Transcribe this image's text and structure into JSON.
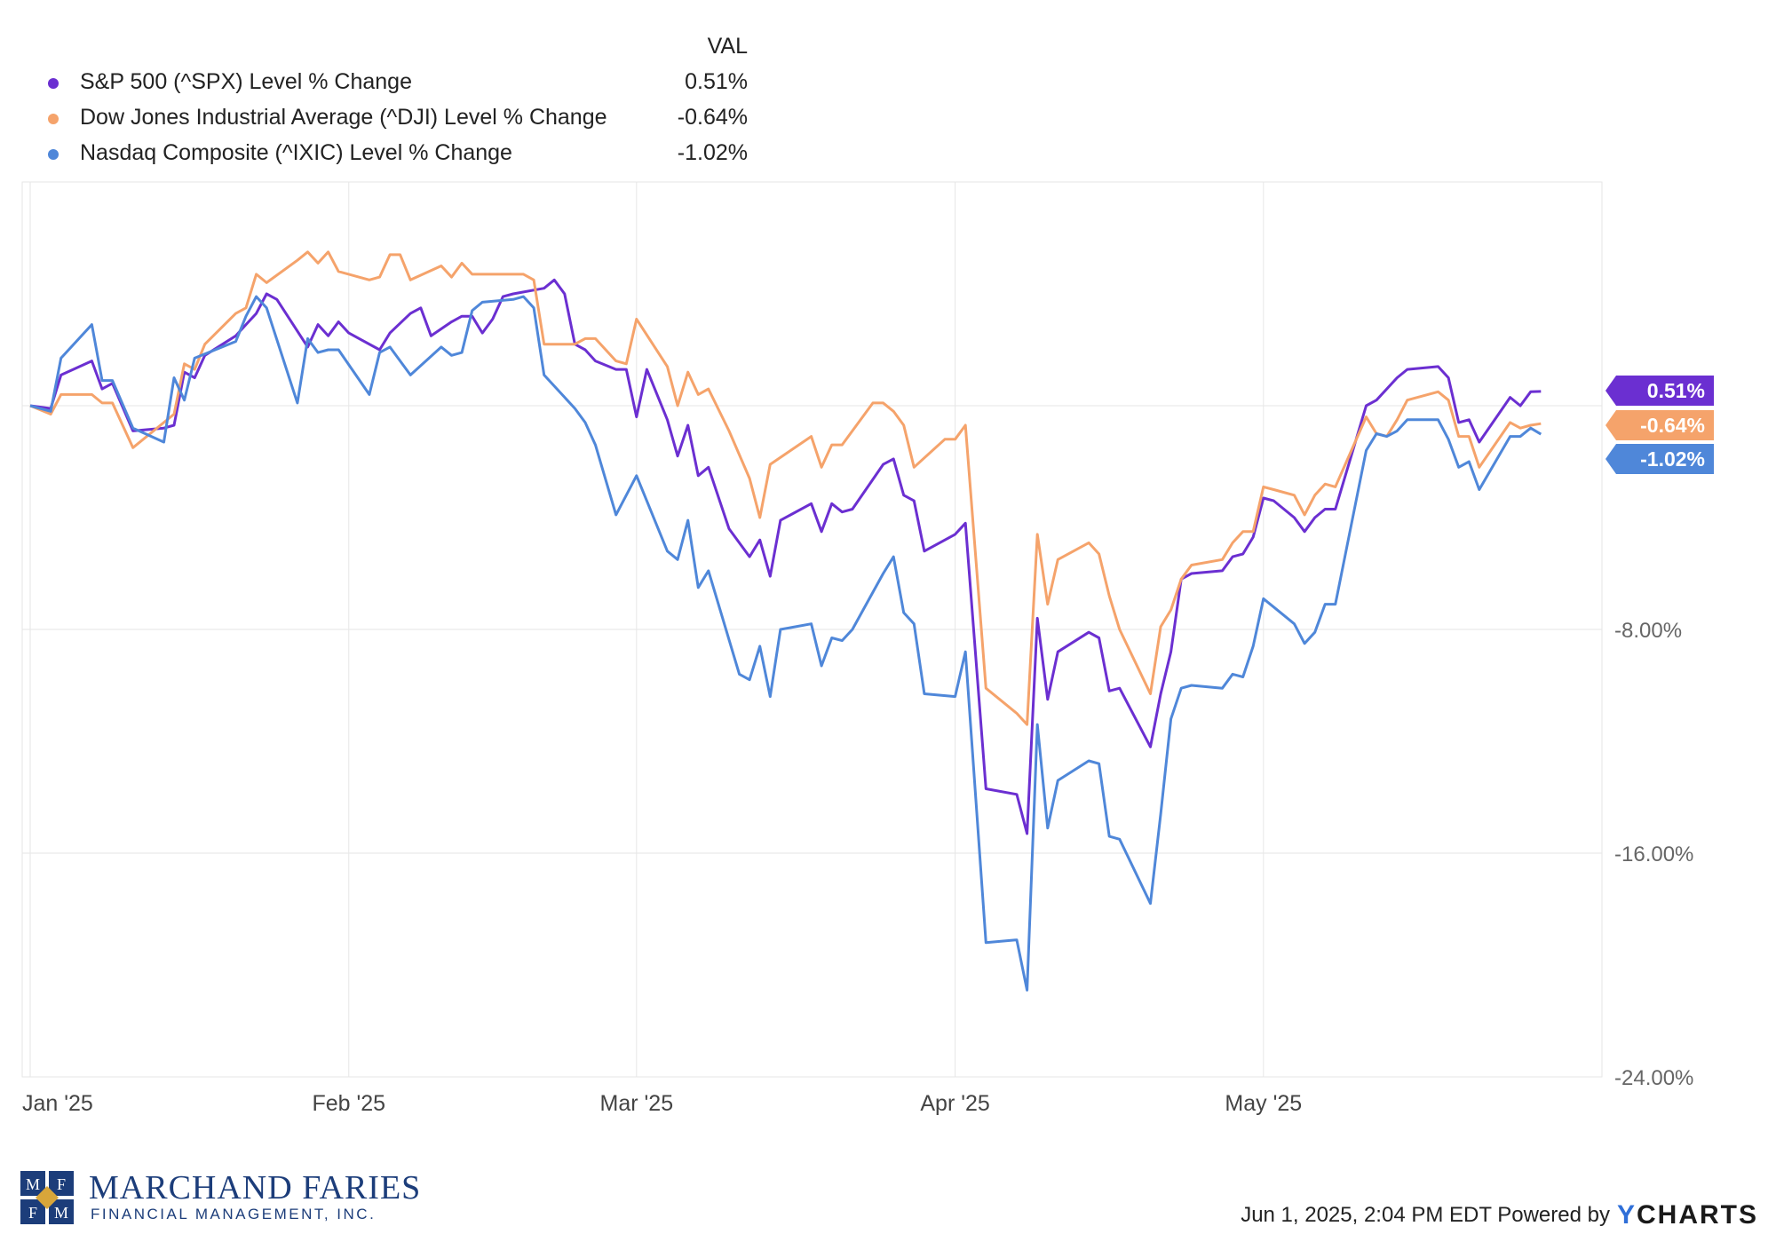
{
  "legend": {
    "header": "VAL",
    "items": [
      {
        "label": "S&P 500 (^SPX) Level % Change",
        "value": "0.51%",
        "color": "#6b2fd1"
      },
      {
        "label": "Dow Jones Industrial Average (^DJI) Level % Change",
        "value": "-0.64%",
        "color": "#f5a36b"
      },
      {
        "label": "Nasdaq Composite (^IXIC) Level % Change",
        "value": "-1.02%",
        "color": "#4f87d9"
      }
    ]
  },
  "chart_data": {
    "type": "line",
    "x_labels": [
      "Jan '25",
      "Feb '25",
      "Mar '25",
      "Apr '25",
      "May '25"
    ],
    "x_label_days": [
      0,
      31,
      59,
      90,
      120
    ],
    "y_ticks": [
      -8,
      -16,
      -24
    ],
    "y_tick_labels": [
      "-8.00%",
      "-16.00%",
      "-24.00%"
    ],
    "ylim": [
      -24,
      8
    ],
    "xlim_days": [
      0,
      150
    ],
    "grid": true,
    "end_labels": [
      "0.51%",
      "-0.64%",
      "-1.02%"
    ],
    "series": [
      {
        "name": "S&P 500 (^SPX) Level % Change",
        "color": "#6b2fd1",
        "points": [
          [
            0,
            0
          ],
          [
            2,
            -0.1
          ],
          [
            3,
            1.1
          ],
          [
            6,
            1.6
          ],
          [
            7,
            0.6
          ],
          [
            8,
            0.8
          ],
          [
            10,
            -0.9
          ],
          [
            13,
            -0.8
          ],
          [
            14,
            -0.7
          ],
          [
            15,
            1.2
          ],
          [
            16,
            1.0
          ],
          [
            17,
            1.8
          ],
          [
            20,
            2.5
          ],
          [
            21,
            2.9
          ],
          [
            22,
            3.3
          ],
          [
            23,
            4
          ],
          [
            24,
            3.8
          ],
          [
            27,
            2.1
          ],
          [
            28,
            2.9
          ],
          [
            29,
            2.5
          ],
          [
            30,
            3.0
          ],
          [
            31,
            2.6
          ],
          [
            34,
            2.0
          ],
          [
            35,
            2.6
          ],
          [
            37,
            3.3
          ],
          [
            38,
            3.5
          ],
          [
            39,
            2.5
          ],
          [
            41,
            3.0
          ],
          [
            42,
            3.2
          ],
          [
            43,
            3.2
          ],
          [
            44,
            2.6
          ],
          [
            45,
            3.1
          ],
          [
            46,
            3.9
          ],
          [
            47,
            4.0
          ],
          [
            50,
            4.2
          ],
          [
            51,
            4.5
          ],
          [
            52,
            4.0
          ],
          [
            53,
            2.2
          ],
          [
            54,
            2.0
          ],
          [
            55,
            1.6
          ],
          [
            57,
            1.3
          ],
          [
            58,
            1.3
          ],
          [
            59,
            -0.4
          ],
          [
            60,
            1.3
          ],
          [
            62,
            -0.5
          ],
          [
            63,
            -1.8
          ],
          [
            64,
            -0.7
          ],
          [
            65,
            -2.5
          ],
          [
            66,
            -2.2
          ],
          [
            68,
            -4.4
          ],
          [
            70,
            -5.4
          ],
          [
            71,
            -4.8
          ],
          [
            72,
            -6.1
          ],
          [
            73,
            -4.1
          ],
          [
            76,
            -3.5
          ],
          [
            77,
            -4.5
          ],
          [
            78,
            -3.5
          ],
          [
            79,
            -3.8
          ],
          [
            80,
            -3.7
          ],
          [
            83,
            -2.1
          ],
          [
            84,
            -1.9
          ],
          [
            85,
            -3.2
          ],
          [
            86,
            -3.4
          ],
          [
            87,
            -5.2
          ],
          [
            90,
            -4.6
          ],
          [
            91,
            -4.2
          ],
          [
            93,
            -13.7
          ],
          [
            96,
            -13.9
          ],
          [
            97,
            -15.3
          ],
          [
            98,
            -7.6
          ],
          [
            99,
            -10.5
          ],
          [
            100,
            -8.8
          ],
          [
            103,
            -8.1
          ],
          [
            104,
            -8.3
          ],
          [
            105,
            -10.2
          ],
          [
            106,
            -10.1
          ],
          [
            109,
            -12.2
          ],
          [
            110,
            -10.3
          ],
          [
            111,
            -8.8
          ],
          [
            112,
            -6.2
          ],
          [
            113,
            -6.0
          ],
          [
            116,
            -5.9
          ],
          [
            117,
            -5.4
          ],
          [
            118,
            -5.3
          ],
          [
            119,
            -4.7
          ],
          [
            120,
            -3.3
          ],
          [
            121,
            -3.4
          ],
          [
            123,
            -4.0
          ],
          [
            124,
            -4.5
          ],
          [
            125,
            -4.0
          ],
          [
            126,
            -3.7
          ],
          [
            127,
            -3.7
          ],
          [
            130,
            0.0
          ],
          [
            131,
            0.2
          ],
          [
            133,
            1.0
          ],
          [
            134,
            1.3
          ],
          [
            137,
            1.4
          ],
          [
            138,
            1.0
          ],
          [
            139,
            -0.6
          ],
          [
            140,
            -0.5
          ],
          [
            141,
            -1.3
          ],
          [
            144,
            0.3
          ],
          [
            145,
            0.0
          ],
          [
            146,
            0.5
          ],
          [
            147,
            0.51
          ]
        ]
      },
      {
        "name": "Dow Jones Industrial Average (^DJI) Level % Change",
        "color": "#f5a36b",
        "points": [
          [
            0,
            0
          ],
          [
            2,
            -0.3
          ],
          [
            3,
            0.4
          ],
          [
            6,
            0.4
          ],
          [
            7,
            0.1
          ],
          [
            8,
            0.1
          ],
          [
            10,
            -1.5
          ],
          [
            13,
            -0.6
          ],
          [
            14,
            -0.3
          ],
          [
            15,
            1.5
          ],
          [
            16,
            1.3
          ],
          [
            17,
            2.2
          ],
          [
            20,
            3.3
          ],
          [
            21,
            3.5
          ],
          [
            22,
            4.7
          ],
          [
            23,
            4.4
          ],
          [
            26,
            5.2
          ],
          [
            27,
            5.5
          ],
          [
            28,
            5.1
          ],
          [
            29,
            5.5
          ],
          [
            30,
            4.8
          ],
          [
            33,
            4.5
          ],
          [
            34,
            4.6
          ],
          [
            35,
            5.4
          ],
          [
            36,
            5.4
          ],
          [
            37,
            4.5
          ],
          [
            40,
            5.0
          ],
          [
            41,
            4.6
          ],
          [
            42,
            5.1
          ],
          [
            43,
            4.7
          ],
          [
            46,
            4.7
          ],
          [
            47,
            4.7
          ],
          [
            48,
            4.7
          ],
          [
            49,
            4.5
          ],
          [
            50,
            2.2
          ],
          [
            53,
            2.2
          ],
          [
            54,
            2.4
          ],
          [
            55,
            2.4
          ],
          [
            57,
            1.6
          ],
          [
            58,
            1.5
          ],
          [
            59,
            3.1
          ],
          [
            62,
            1.4
          ],
          [
            63,
            0.0
          ],
          [
            64,
            1.2
          ],
          [
            65,
            0.4
          ],
          [
            66,
            0.6
          ],
          [
            68,
            -0.9
          ],
          [
            70,
            -2.6
          ],
          [
            71,
            -4.0
          ],
          [
            72,
            -2.1
          ],
          [
            76,
            -1.1
          ],
          [
            77,
            -2.2
          ],
          [
            78,
            -1.4
          ],
          [
            79,
            -1.4
          ],
          [
            82,
            0.1
          ],
          [
            83,
            0.1
          ],
          [
            84,
            -0.2
          ],
          [
            85,
            -0.7
          ],
          [
            86,
            -2.2
          ],
          [
            89,
            -1.2
          ],
          [
            90,
            -1.2
          ],
          [
            91,
            -0.7
          ],
          [
            93,
            -10.1
          ],
          [
            96,
            -11.0
          ],
          [
            97,
            -11.4
          ],
          [
            98,
            -4.6
          ],
          [
            99,
            -7.1
          ],
          [
            100,
            -5.5
          ],
          [
            103,
            -4.9
          ],
          [
            104,
            -5.3
          ],
          [
            105,
            -6.8
          ],
          [
            106,
            -8.0
          ],
          [
            109,
            -10.3
          ],
          [
            110,
            -7.9
          ],
          [
            111,
            -7.3
          ],
          [
            112,
            -6.2
          ],
          [
            113,
            -5.7
          ],
          [
            116,
            -5.5
          ],
          [
            117,
            -4.9
          ],
          [
            118,
            -4.5
          ],
          [
            119,
            -4.5
          ],
          [
            120,
            -2.9
          ],
          [
            121,
            -3.0
          ],
          [
            123,
            -3.2
          ],
          [
            124,
            -3.9
          ],
          [
            125,
            -3.2
          ],
          [
            126,
            -2.8
          ],
          [
            127,
            -2.9
          ],
          [
            130,
            -0.4
          ],
          [
            131,
            -1.0
          ],
          [
            132,
            -1.1
          ],
          [
            133,
            -0.5
          ],
          [
            134,
            0.2
          ],
          [
            137,
            0.5
          ],
          [
            138,
            0.2
          ],
          [
            139,
            -1.1
          ],
          [
            140,
            -1.1
          ],
          [
            141,
            -2.2
          ],
          [
            144,
            -0.6
          ],
          [
            145,
            -0.8
          ],
          [
            146,
            -0.7
          ],
          [
            147,
            -0.64
          ]
        ]
      },
      {
        "name": "Nasdaq Composite (^IXIC) Level % Change",
        "color": "#4f87d9",
        "points": [
          [
            0,
            0
          ],
          [
            2,
            -0.2
          ],
          [
            3,
            1.7
          ],
          [
            6,
            2.9
          ],
          [
            7,
            0.9
          ],
          [
            8,
            0.9
          ],
          [
            10,
            -0.8
          ],
          [
            13,
            -1.3
          ],
          [
            14,
            1.0
          ],
          [
            15,
            0.2
          ],
          [
            16,
            1.7
          ],
          [
            20,
            2.3
          ],
          [
            21,
            3.2
          ],
          [
            22,
            3.9
          ],
          [
            23,
            3.5
          ],
          [
            26,
            0.1
          ],
          [
            27,
            2.4
          ],
          [
            28,
            1.9
          ],
          [
            29,
            2.0
          ],
          [
            30,
            2.0
          ],
          [
            33,
            0.4
          ],
          [
            34,
            1.9
          ],
          [
            35,
            2.1
          ],
          [
            37,
            1.1
          ],
          [
            40,
            2.1
          ],
          [
            41,
            1.8
          ],
          [
            42,
            1.9
          ],
          [
            43,
            3.4
          ],
          [
            44,
            3.7
          ],
          [
            47,
            3.8
          ],
          [
            48,
            3.9
          ],
          [
            49,
            3.5
          ],
          [
            50,
            1.1
          ],
          [
            53,
            -0.1
          ],
          [
            54,
            -0.6
          ],
          [
            55,
            -1.4
          ],
          [
            57,
            -3.9
          ],
          [
            59,
            -2.5
          ],
          [
            62,
            -5.2
          ],
          [
            63,
            -5.5
          ],
          [
            64,
            -4.1
          ],
          [
            65,
            -6.5
          ],
          [
            66,
            -5.9
          ],
          [
            69,
            -9.6
          ],
          [
            70,
            -9.8
          ],
          [
            71,
            -8.6
          ],
          [
            72,
            -10.4
          ],
          [
            73,
            -8.0
          ],
          [
            76,
            -7.8
          ],
          [
            77,
            -9.3
          ],
          [
            78,
            -8.3
          ],
          [
            79,
            -8.4
          ],
          [
            80,
            -8.0
          ],
          [
            83,
            -6.0
          ],
          [
            84,
            -5.4
          ],
          [
            85,
            -7.4
          ],
          [
            86,
            -7.8
          ],
          [
            87,
            -10.3
          ],
          [
            90,
            -10.4
          ],
          [
            91,
            -8.8
          ],
          [
            93,
            -19.2
          ],
          [
            96,
            -19.1
          ],
          [
            97,
            -20.9
          ],
          [
            98,
            -11.4
          ],
          [
            99,
            -15.1
          ],
          [
            100,
            -13.4
          ],
          [
            103,
            -12.7
          ],
          [
            104,
            -12.8
          ],
          [
            105,
            -15.4
          ],
          [
            106,
            -15.5
          ],
          [
            109,
            -17.8
          ],
          [
            110,
            -14.6
          ],
          [
            111,
            -11.2
          ],
          [
            112,
            -10.1
          ],
          [
            113,
            -10.0
          ],
          [
            116,
            -10.1
          ],
          [
            117,
            -9.6
          ],
          [
            118,
            -9.7
          ],
          [
            119,
            -8.6
          ],
          [
            120,
            -6.9
          ],
          [
            121,
            -7.2
          ],
          [
            123,
            -7.8
          ],
          [
            124,
            -8.5
          ],
          [
            125,
            -8.1
          ],
          [
            126,
            -7.1
          ],
          [
            127,
            -7.1
          ],
          [
            130,
            -1.6
          ],
          [
            131,
            -1.0
          ],
          [
            132,
            -1.1
          ],
          [
            133,
            -0.9
          ],
          [
            134,
            -0.5
          ],
          [
            137,
            -0.5
          ],
          [
            138,
            -1.2
          ],
          [
            139,
            -2.2
          ],
          [
            140,
            -2.0
          ],
          [
            141,
            -3.0
          ],
          [
            144,
            -1.1
          ],
          [
            145,
            -1.1
          ],
          [
            146,
            -0.8
          ],
          [
            147,
            -1.02
          ]
        ]
      }
    ]
  },
  "branding": {
    "mark_letters": [
      "M",
      "F",
      "F",
      "M"
    ],
    "company_name": "MARCHAND FARIES",
    "company_sub": "FINANCIAL MANAGEMENT, INC."
  },
  "footer": {
    "timestamp_text": "Jun 1, 2025, 2:04 PM EDT Powered by",
    "logo_y": "Y",
    "logo_rest": "CHARTS"
  }
}
